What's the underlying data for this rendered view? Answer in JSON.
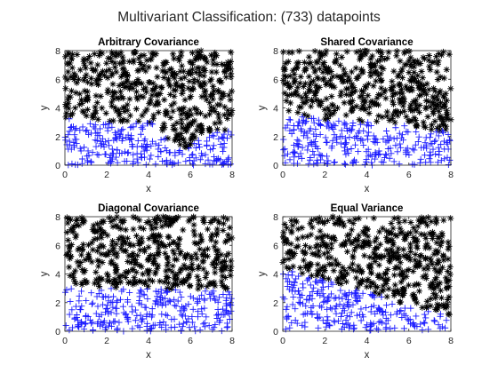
{
  "figure": {
    "title": "Multivariant Classification: (733) datapoints",
    "colors": {
      "class_star": "#000000",
      "class_plus": "#0000FF",
      "axes": "#262626"
    }
  },
  "chart_data": [
    {
      "type": "scatter",
      "title": "Arbitrary Covariance",
      "xlabel": "x",
      "ylabel": "y",
      "xlim": [
        0,
        8
      ],
      "ylim": [
        0,
        8
      ],
      "xticks": [
        0,
        2,
        4,
        6,
        8
      ],
      "yticks": [
        0,
        2,
        4,
        6,
        8
      ],
      "grid": false,
      "point_count": 733,
      "series": [
        {
          "marker": "star",
          "color": "#000000",
          "region": "y above boundary (approx. 3.0; dips to ~1.0 near x 5-6)"
        },
        {
          "marker": "plus",
          "color": "#0000FF",
          "region": "y below boundary (approx. 3.0; dips to ~1.0 near x 5-6)"
        }
      ],
      "boundary": [
        [
          0,
          3.3
        ],
        [
          1,
          3.1
        ],
        [
          2,
          3.0
        ],
        [
          3,
          3.1
        ],
        [
          4,
          3.0
        ],
        [
          4.6,
          2.6
        ],
        [
          5.0,
          1.6
        ],
        [
          5.4,
          1.0
        ],
        [
          5.9,
          1.3
        ],
        [
          6.4,
          2.0
        ],
        [
          7.0,
          2.4
        ],
        [
          8,
          2.4
        ]
      ]
    },
    {
      "type": "scatter",
      "title": "Shared Covariance",
      "xlabel": "x",
      "ylabel": "y",
      "xlim": [
        0,
        8
      ],
      "ylim": [
        0,
        8
      ],
      "xticks": [
        0,
        2,
        4,
        6,
        8
      ],
      "yticks": [
        0,
        2,
        4,
        6,
        8
      ],
      "grid": false,
      "point_count": 733,
      "series": [
        {
          "marker": "star",
          "color": "#000000",
          "region": "y above boundary (approx. 3.4 to 2.4)"
        },
        {
          "marker": "plus",
          "color": "#0000FF",
          "region": "y below boundary (approx. 3.4 to 2.4)"
        }
      ],
      "boundary": [
        [
          0,
          3.5
        ],
        [
          1,
          3.4
        ],
        [
          2,
          3.2
        ],
        [
          3,
          3.1
        ],
        [
          4,
          3.0
        ],
        [
          5,
          2.9
        ],
        [
          6,
          2.8
        ],
        [
          7,
          2.5
        ],
        [
          8,
          2.3
        ]
      ]
    },
    {
      "type": "scatter",
      "title": "Diagonal Covariance",
      "xlabel": "x",
      "ylabel": "y",
      "xlim": [
        0,
        8
      ],
      "ylim": [
        0,
        8
      ],
      "xticks": [
        0,
        2,
        4,
        6,
        8
      ],
      "yticks": [
        0,
        2,
        4,
        6,
        8
      ],
      "grid": false,
      "point_count": 733,
      "series": [
        {
          "marker": "star",
          "color": "#000000",
          "region": "y above boundary (approx. 3.0)"
        },
        {
          "marker": "plus",
          "color": "#0000FF",
          "region": "y below boundary (approx. 3.0)"
        }
      ],
      "boundary": [
        [
          0,
          3.0
        ],
        [
          2,
          3.0
        ],
        [
          4,
          3.0
        ],
        [
          6,
          2.9
        ],
        [
          8,
          2.9
        ]
      ]
    },
    {
      "type": "scatter",
      "title": "Equal Variance",
      "xlabel": "x",
      "ylabel": "y",
      "xlim": [
        0,
        8
      ],
      "ylim": [
        0,
        8
      ],
      "xticks": [
        0,
        2,
        4,
        6,
        8
      ],
      "yticks": [
        0,
        2,
        4,
        6,
        8
      ],
      "grid": false,
      "point_count": 733,
      "series": [
        {
          "marker": "star",
          "color": "#000000",
          "region": "y above boundary (approx. 4.2 falling to 1.2)"
        },
        {
          "marker": "plus",
          "color": "#0000FF",
          "region": "y below boundary (approx. 4.2 falling to 1.2)"
        }
      ],
      "boundary": [
        [
          0,
          4.4
        ],
        [
          1,
          4.0
        ],
        [
          2,
          3.6
        ],
        [
          3,
          3.2
        ],
        [
          4,
          2.8
        ],
        [
          5,
          2.3
        ],
        [
          6,
          1.8
        ],
        [
          7,
          1.4
        ],
        [
          8,
          1.0
        ]
      ]
    }
  ]
}
